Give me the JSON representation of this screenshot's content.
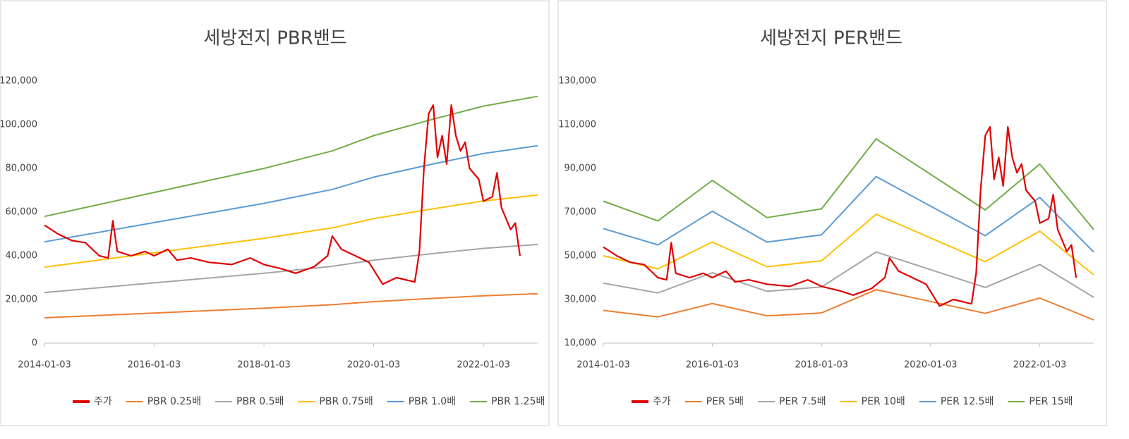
{
  "chart_data": [
    {
      "type": "line",
      "title": "세방전지 PBR밴드",
      "xlim": [
        "2014-01-03",
        "2022-12-30"
      ],
      "xticks": [
        "2014-01-03",
        "2016-01-03",
        "2018-01-03",
        "2020-01-03",
        "2022-01-03"
      ],
      "ylim": [
        0,
        120000
      ],
      "yticks": [
        {
          "value": 0,
          "label": "0"
        },
        {
          "value": 20000,
          "label": "20,000"
        },
        {
          "value": 40000,
          "label": "40,000"
        },
        {
          "value": 60000,
          "label": "60,000"
        },
        {
          "value": 80000,
          "label": "80,000"
        },
        {
          "value": 100000,
          "label": "100,000"
        },
        {
          "value": 120000,
          "label": "120,000"
        }
      ],
      "grid": false,
      "series": [
        {
          "name": "주가",
          "color": "#e00000",
          "x": [
            "2014-01-03",
            "2014-04-03",
            "2014-07-03",
            "2014-10-03",
            "2015-01-03",
            "2015-03-03",
            "2015-04-03",
            "2015-05-03",
            "2015-08-03",
            "2015-11-03",
            "2016-01-03",
            "2016-04-03",
            "2016-06-03",
            "2016-09-03",
            "2017-01-03",
            "2017-06-03",
            "2017-10-03",
            "2018-01-03",
            "2018-05-03",
            "2018-08-03",
            "2018-12-03",
            "2019-03-03",
            "2019-04-03",
            "2019-06-03",
            "2019-09-03",
            "2019-12-03",
            "2020-03-03",
            "2020-06-03",
            "2020-10-03",
            "2020-11-03",
            "2020-12-03",
            "2021-01-03",
            "2021-02-03",
            "2021-03-03",
            "2021-04-03",
            "2021-05-03",
            "2021-06-03",
            "2021-07-03",
            "2021-08-03",
            "2021-09-03",
            "2021-10-03",
            "2021-12-03",
            "2022-01-03",
            "2022-03-03",
            "2022-04-03",
            "2022-05-03",
            "2022-07-03",
            "2022-08-03",
            "2022-09-03"
          ],
          "values": [
            54000,
            50000,
            47000,
            46000,
            40000,
            39000,
            56000,
            42000,
            40000,
            42000,
            40000,
            43000,
            38000,
            39000,
            37000,
            36000,
            39000,
            36000,
            34000,
            32000,
            35000,
            40000,
            49000,
            43000,
            40000,
            37000,
            27000,
            30000,
            28000,
            42000,
            80000,
            105000,
            109000,
            85000,
            95000,
            82000,
            109000,
            95000,
            88000,
            92000,
            80000,
            75000,
            65000,
            67000,
            78000,
            62000,
            52000,
            55000,
            40000
          ]
        },
        {
          "name": "PBR 0.25배",
          "color": "#ed7d31",
          "x": [
            "2014-01-03",
            "2016-01-03",
            "2018-01-03",
            "2019-04-03",
            "2020-01-03",
            "2021-01-03",
            "2022-01-03",
            "2022-12-30"
          ],
          "values": [
            11600,
            13800,
            16000,
            17600,
            19000,
            20400,
            21700,
            22600
          ]
        },
        {
          "name": "PBR 0.5배",
          "color": "#a5a5a5",
          "x": [
            "2014-01-03",
            "2016-01-03",
            "2018-01-03",
            "2019-04-03",
            "2020-01-03",
            "2021-01-03",
            "2022-01-03",
            "2022-12-30"
          ],
          "values": [
            23200,
            27600,
            32000,
            35200,
            38000,
            40800,
            43400,
            45200
          ]
        },
        {
          "name": "PBR 0.75배",
          "color": "#ffc000",
          "x": [
            "2014-01-03",
            "2016-01-03",
            "2018-01-03",
            "2019-04-03",
            "2020-01-03",
            "2021-01-03",
            "2022-01-03",
            "2022-12-30"
          ],
          "values": [
            34800,
            41400,
            48000,
            52800,
            57000,
            61200,
            65100,
            67800
          ]
        },
        {
          "name": "PBR 1.0배",
          "color": "#5b9bd5",
          "x": [
            "2014-01-03",
            "2016-01-03",
            "2018-01-03",
            "2019-04-03",
            "2020-01-03",
            "2021-01-03",
            "2022-01-03",
            "2022-12-30"
          ],
          "values": [
            46400,
            55200,
            64000,
            70400,
            76000,
            81600,
            86800,
            90400
          ]
        },
        {
          "name": "PBR 1.25배",
          "color": "#70ad47",
          "x": [
            "2014-01-03",
            "2016-01-03",
            "2018-01-03",
            "2019-04-03",
            "2020-01-03",
            "2021-01-03",
            "2022-01-03",
            "2022-12-30"
          ],
          "values": [
            58000,
            69000,
            80000,
            88000,
            95000,
            102000,
            108500,
            113000
          ]
        }
      ]
    },
    {
      "type": "line",
      "title": "세방전지 PER밴드",
      "xlim": [
        "2014-01-03",
        "2022-12-30"
      ],
      "xticks": [
        "2014-01-03",
        "2016-01-03",
        "2018-01-03",
        "2020-01-03",
        "2022-01-03"
      ],
      "ylim": [
        10000,
        130000
      ],
      "yticks": [
        {
          "value": 10000,
          "label": "10,000"
        },
        {
          "value": 30000,
          "label": "30,000"
        },
        {
          "value": 50000,
          "label": "50,000"
        },
        {
          "value": 70000,
          "label": "70,000"
        },
        {
          "value": 90000,
          "label": "90,000"
        },
        {
          "value": 110000,
          "label": "110,000"
        },
        {
          "value": 130000,
          "label": "130,000"
        }
      ],
      "grid": false,
      "series": [
        {
          "name": "주가",
          "color": "#e00000",
          "x": [
            "2014-01-03",
            "2014-04-03",
            "2014-07-03",
            "2014-10-03",
            "2015-01-03",
            "2015-03-03",
            "2015-04-03",
            "2015-05-03",
            "2015-08-03",
            "2015-11-03",
            "2016-01-03",
            "2016-04-03",
            "2016-06-03",
            "2016-09-03",
            "2017-01-03",
            "2017-06-03",
            "2017-10-03",
            "2018-01-03",
            "2018-05-03",
            "2018-08-03",
            "2018-12-03",
            "2019-03-03",
            "2019-04-03",
            "2019-06-03",
            "2019-09-03",
            "2019-12-03",
            "2020-03-03",
            "2020-06-03",
            "2020-10-03",
            "2020-11-03",
            "2020-12-03",
            "2021-01-03",
            "2021-02-03",
            "2021-03-03",
            "2021-04-03",
            "2021-05-03",
            "2021-06-03",
            "2021-07-03",
            "2021-08-03",
            "2021-09-03",
            "2021-10-03",
            "2021-12-03",
            "2022-01-03",
            "2022-03-03",
            "2022-04-03",
            "2022-05-03",
            "2022-07-03",
            "2022-08-03",
            "2022-09-03"
          ],
          "values": [
            54000,
            50000,
            47000,
            46000,
            40000,
            39000,
            56000,
            42000,
            40000,
            42000,
            40000,
            43000,
            38000,
            39000,
            37000,
            36000,
            39000,
            36000,
            34000,
            32000,
            35000,
            40000,
            49000,
            43000,
            40000,
            37000,
            27000,
            30000,
            28000,
            42000,
            80000,
            105000,
            109000,
            85000,
            95000,
            82000,
            109000,
            95000,
            88000,
            92000,
            80000,
            75000,
            65000,
            67000,
            78000,
            62000,
            52000,
            55000,
            40000
          ]
        },
        {
          "name": "PER 5배",
          "color": "#ed7d31",
          "x": [
            "2014-01-03",
            "2015-01-03",
            "2016-01-03",
            "2017-01-03",
            "2018-01-03",
            "2019-01-03",
            "2021-01-03",
            "2022-01-03",
            "2022-12-30"
          ],
          "values": [
            25000,
            22000,
            28150,
            22500,
            23850,
            34500,
            23650,
            30650,
            20650
          ]
        },
        {
          "name": "PER 7.5배",
          "color": "#a5a5a5",
          "x": [
            "2014-01-03",
            "2015-01-03",
            "2016-01-03",
            "2017-01-03",
            "2018-01-03",
            "2019-01-03",
            "2021-01-03",
            "2022-01-03",
            "2022-12-30"
          ],
          "values": [
            37500,
            33000,
            42250,
            33750,
            35750,
            51750,
            35500,
            46000,
            31000
          ]
        },
        {
          "name": "PER 10배",
          "color": "#ffc000",
          "x": [
            "2014-01-03",
            "2015-01-03",
            "2016-01-03",
            "2017-01-03",
            "2018-01-03",
            "2019-01-03",
            "2021-01-03",
            "2022-01-03",
            "2022-12-30"
          ],
          "values": [
            50000,
            44000,
            56300,
            45000,
            47700,
            69000,
            47300,
            61300,
            41300
          ]
        },
        {
          "name": "PER 12.5배",
          "color": "#5b9bd5",
          "x": [
            "2014-01-03",
            "2015-01-03",
            "2016-01-03",
            "2017-01-03",
            "2018-01-03",
            "2019-01-03",
            "2021-01-03",
            "2022-01-03",
            "2022-12-30"
          ],
          "values": [
            62500,
            55000,
            70400,
            56250,
            59600,
            86250,
            59200,
            76700,
            51700
          ]
        },
        {
          "name": "PER 15배",
          "color": "#70ad47",
          "x": [
            "2014-01-03",
            "2015-01-03",
            "2016-01-03",
            "2017-01-03",
            "2018-01-03",
            "2019-01-03",
            "2021-01-03",
            "2022-01-03",
            "2022-12-30"
          ],
          "values": [
            75000,
            66000,
            84500,
            67500,
            71500,
            103500,
            71000,
            92000,
            62000
          ]
        }
      ]
    }
  ]
}
